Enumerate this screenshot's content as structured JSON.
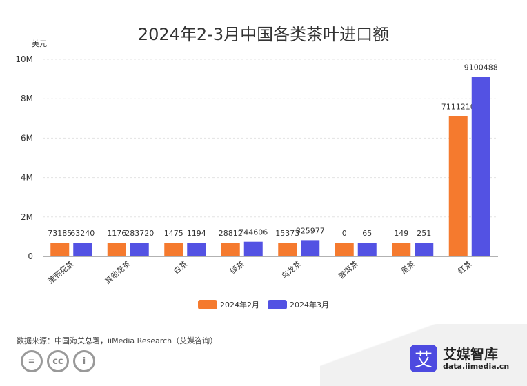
{
  "chart_data": {
    "type": "bar",
    "title": "2024年2-3月中国各类茶叶进口额",
    "ylabel": "美元",
    "ylim": [
      0,
      10000000
    ],
    "y_ticks": [
      "0",
      "2M",
      "4M",
      "6M",
      "8M",
      "10M"
    ],
    "categories": [
      "茉莉花茶",
      "其他花茶",
      "白茶",
      "绿茶",
      "乌龙茶",
      "普洱茶",
      "黑茶",
      "红茶"
    ],
    "series": [
      {
        "name": "2024年2月",
        "color": "#f57a2e",
        "values": [
          73185,
          1176,
          1475,
          28812,
          15373,
          0,
          149,
          7111210
        ],
        "labels": [
          "73185",
          "1176",
          "1475",
          "28812",
          "15373",
          "0",
          "149",
          "7111210"
        ]
      },
      {
        "name": "2024年3月",
        "color": "#5352e3",
        "values": [
          63240,
          283720,
          1194,
          744606,
          825977,
          65,
          251,
          9100488
        ],
        "labels": [
          "63240",
          "283720",
          "1194",
          "744606",
          "825977",
          "65",
          "251",
          "9100488"
        ]
      }
    ],
    "grid": true,
    "legend_position": "bottom"
  },
  "footer": {
    "source": "数据来源：中国海关总署，iiMedia Research（艾媒咨询）",
    "brand_name": "艾媒智库",
    "brand_url": "data.iimedia.cn",
    "brand_logo_char": "艾"
  },
  "cc_icons": [
    "=",
    "cc",
    "i"
  ]
}
